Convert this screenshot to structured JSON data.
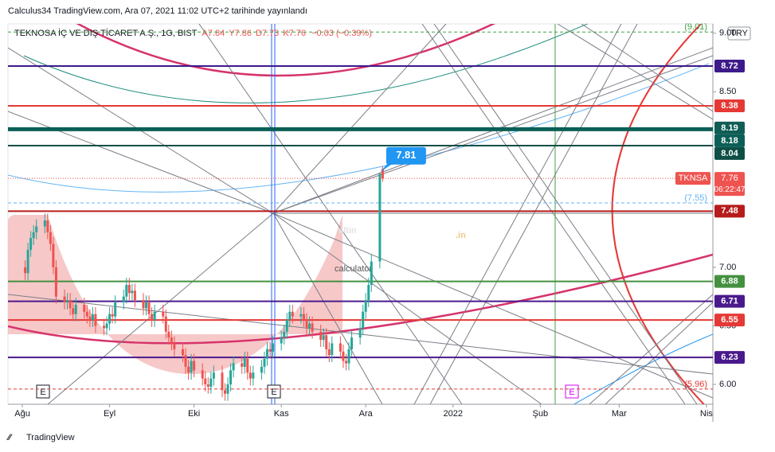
{
  "header": {
    "publisher": "Calculus34 TradingView.com, Ara 07, 2021 11:02 UTC+2 tarihinde yayınlandı",
    "footer": "TradingView",
    "currency": "TRY"
  },
  "chart_data": {
    "type": "candlestick",
    "legend": {
      "symbol": "TEKNOSA İÇ VE DIŞ TİCARET A.Ş., 1G, BIST",
      "ohlc": [
        "A7.84",
        "Y7.86",
        "D7.73",
        "K7.76"
      ],
      "change": "−0.03 (−0.39%)"
    },
    "colors": {
      "up": "#26a69a",
      "down": "#ef5350"
    },
    "x": [
      1,
      2,
      3,
      4,
      5,
      8,
      9,
      10,
      11,
      12,
      15,
      16,
      17,
      18,
      19,
      22,
      23,
      24,
      25,
      26,
      29,
      30,
      31,
      32,
      33,
      36,
      37,
      38,
      39,
      40,
      43,
      44,
      45,
      46,
      47,
      50,
      51,
      52,
      53,
      54,
      57,
      58,
      59,
      60,
      61,
      64,
      65,
      66,
      67,
      68,
      71,
      72,
      73,
      74,
      75,
      78,
      79,
      80,
      81,
      82,
      85,
      86,
      87,
      88,
      89,
      92,
      93,
      94,
      95,
      96,
      99,
      100,
      101,
      102,
      103,
      106,
      107,
      108,
      109,
      110,
      113,
      114,
      115,
      116,
      117,
      120,
      121,
      122,
      123,
      124,
      127,
      128
    ],
    "open": [
      7.0,
      6.95,
      7.15,
      7.25,
      7.3,
      7.35,
      7.4,
      7.3,
      7.2,
      7.0,
      6.75,
      6.7,
      6.72,
      6.65,
      6.6,
      6.68,
      6.62,
      6.58,
      6.55,
      6.6,
      6.5,
      6.48,
      6.52,
      6.6,
      6.58,
      6.7,
      6.75,
      6.85,
      6.78,
      6.8,
      6.72,
      6.65,
      6.7,
      6.6,
      6.55,
      6.62,
      6.58,
      6.45,
      6.4,
      6.35,
      6.3,
      6.25,
      6.15,
      6.1,
      6.2,
      6.12,
      6.05,
      6.0,
      5.98,
      6.05,
      6.1,
      5.95,
      5.92,
      6.0,
      6.12,
      6.18,
      6.15,
      6.22,
      6.1,
      6.05,
      6.1,
      6.15,
      6.22,
      6.3,
      6.28,
      6.35,
      6.4,
      6.45,
      6.55,
      6.62,
      6.58,
      6.6,
      6.55,
      6.48,
      6.52,
      6.45,
      6.38,
      6.42,
      6.3,
      6.25,
      6.35,
      6.28,
      6.2,
      6.18,
      6.3,
      6.4,
      6.48,
      6.62,
      6.72,
      6.85,
      7.05,
      7.84
    ],
    "high": [
      7.06,
      7.21,
      7.31,
      7.36,
      7.41,
      7.46,
      7.46,
      7.36,
      7.26,
      7.06,
      6.81,
      6.78,
      6.78,
      6.71,
      6.74,
      6.74,
      6.68,
      6.64,
      6.66,
      6.66,
      6.56,
      6.58,
      6.66,
      6.66,
      6.76,
      6.81,
      6.91,
      6.91,
      6.86,
      6.86,
      6.78,
      6.76,
      6.76,
      6.66,
      6.68,
      6.68,
      6.64,
      6.51,
      6.46,
      6.41,
      6.36,
      6.31,
      6.21,
      6.26,
      6.26,
      6.18,
      6.11,
      6.06,
      6.11,
      6.16,
      6.16,
      6.01,
      6.06,
      6.18,
      6.24,
      6.24,
      6.28,
      6.28,
      6.16,
      6.16,
      6.21,
      6.28,
      6.36,
      6.36,
      6.41,
      6.46,
      6.51,
      6.61,
      6.68,
      6.68,
      6.66,
      6.66,
      6.61,
      6.58,
      6.58,
      6.51,
      6.48,
      6.48,
      6.36,
      6.41,
      6.41,
      6.34,
      6.26,
      6.36,
      6.46,
      6.54,
      6.68,
      6.78,
      6.91,
      7.11,
      7.81,
      7.86
    ],
    "low": [
      6.89,
      6.89,
      7.09,
      7.19,
      7.24,
      7.29,
      7.24,
      7.14,
      6.94,
      6.69,
      6.64,
      6.64,
      6.59,
      6.54,
      6.54,
      6.56,
      6.52,
      6.49,
      6.49,
      6.44,
      6.42,
      6.42,
      6.46,
      6.52,
      6.52,
      6.64,
      6.69,
      6.72,
      6.72,
      6.66,
      6.59,
      6.59,
      6.54,
      6.49,
      6.49,
      6.52,
      6.39,
      6.34,
      6.29,
      6.24,
      6.19,
      6.09,
      6.04,
      6.04,
      6.06,
      5.99,
      5.94,
      5.92,
      5.92,
      5.99,
      5.89,
      5.86,
      5.86,
      5.94,
      6.06,
      6.09,
      6.09,
      6.04,
      5.99,
      5.99,
      6.04,
      6.09,
      6.16,
      6.22,
      6.22,
      6.29,
      6.34,
      6.39,
      6.49,
      6.52,
      6.52,
      6.49,
      6.42,
      6.42,
      6.39,
      6.32,
      6.32,
      6.24,
      6.19,
      6.19,
      6.22,
      6.14,
      6.12,
      6.12,
      6.24,
      6.34,
      6.42,
      6.56,
      6.66,
      6.79,
      6.99,
      7.73
    ],
    "close": [
      6.95,
      7.15,
      7.25,
      7.3,
      7.35,
      7.4,
      7.3,
      7.2,
      7.0,
      6.75,
      6.7,
      6.72,
      6.65,
      6.6,
      6.68,
      6.62,
      6.58,
      6.55,
      6.6,
      6.5,
      6.48,
      6.52,
      6.6,
      6.58,
      6.7,
      6.75,
      6.85,
      6.78,
      6.8,
      6.72,
      6.65,
      6.7,
      6.6,
      6.55,
      6.62,
      6.58,
      6.45,
      6.4,
      6.35,
      6.3,
      6.25,
      6.15,
      6.1,
      6.2,
      6.12,
      6.05,
      6.0,
      5.98,
      6.05,
      6.1,
      5.95,
      5.92,
      6.0,
      6.12,
      6.18,
      6.15,
      6.22,
      6.1,
      6.05,
      6.1,
      6.15,
      6.22,
      6.3,
      6.28,
      6.35,
      6.4,
      6.45,
      6.55,
      6.62,
      6.58,
      6.6,
      6.55,
      6.48,
      6.52,
      6.45,
      6.38,
      6.42,
      6.3,
      6.25,
      6.35,
      6.28,
      6.2,
      6.18,
      6.3,
      6.4,
      6.48,
      6.62,
      6.72,
      6.85,
      7.05,
      7.8,
      7.76
    ],
    "xlim": [
      -5.1,
      245.3
    ],
    "xticks": [
      {
        "value": 0,
        "label": "Ağu"
      },
      {
        "value": 31,
        "label": "Eyl"
      },
      {
        "value": 61,
        "label": "Eki"
      },
      {
        "value": 92,
        "label": "Kas"
      },
      {
        "value": 122,
        "label": "Ara"
      },
      {
        "value": 153,
        "label": "2022"
      },
      {
        "value": 184,
        "label": "Şub"
      },
      {
        "value": 212,
        "label": "Mar"
      },
      {
        "value": 243,
        "label": "Nis"
      }
    ],
    "ylim": [
      5.83,
      9.08
    ],
    "yticks": [
      {
        "value": 6,
        "label": "6.00"
      },
      {
        "value": 6.5,
        "label": "6.50"
      },
      {
        "value": 7,
        "label": "7.00"
      },
      {
        "value": 8.5,
        "label": "8.50"
      },
      {
        "value": 9,
        "label": "9.00"
      }
    ],
    "levels": [
      {
        "value": 8.72,
        "color": "#3d1a8a",
        "width": 2
      },
      {
        "value": 8.38,
        "color": "#e53935",
        "width": 2
      },
      {
        "value": 8.19,
        "color": "#0f5e55",
        "width": 1.5
      },
      {
        "value": 8.18,
        "color": "#0b5f57",
        "width": 5
      },
      {
        "value": 8.04,
        "color": "#0d4f47",
        "width": 2
      },
      {
        "value": 7.48,
        "color": "#b71c1c",
        "width": 2
      },
      {
        "value": 6.88,
        "color": "#43913f",
        "width": 2
      },
      {
        "value": 6.71,
        "color": "#4a1a8c",
        "width": 2
      },
      {
        "value": 6.55,
        "color": "#e53935",
        "width": 2
      },
      {
        "value": 6.23,
        "color": "#4a1a8c",
        "width": 2
      }
    ],
    "dashed_levels": [
      {
        "value": 9.01,
        "label": "(9.01)",
        "color": "#43a047"
      },
      {
        "value": 7.55,
        "label": "(7.55)",
        "color": "#64b5f6"
      },
      {
        "value": 5.96,
        "label": "(5.96)",
        "color": "#e53935"
      }
    ],
    "last_price": {
      "symbol": "TKNSA",
      "value": 7.76,
      "countdown": "06:22:47",
      "color": "#ef5350"
    },
    "callout": {
      "value": 7.81,
      "color": "#2196f3"
    },
    "watermark": [
      "altin",
      ".in",
      "calculator"
    ]
  }
}
